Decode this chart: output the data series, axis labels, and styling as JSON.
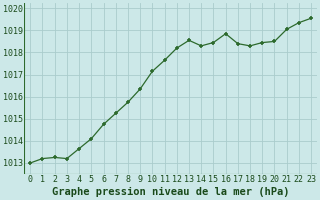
{
  "x": [
    0,
    1,
    2,
    3,
    4,
    5,
    6,
    7,
    8,
    9,
    10,
    11,
    12,
    13,
    14,
    15,
    16,
    17,
    18,
    19,
    20,
    21,
    22,
    23
  ],
  "y": [
    1013.0,
    1013.2,
    1013.25,
    1013.2,
    1013.65,
    1014.1,
    1014.75,
    1015.25,
    1015.75,
    1016.35,
    1017.15,
    1017.65,
    1018.2,
    1018.55,
    1018.3,
    1018.45,
    1018.85,
    1018.4,
    1018.3,
    1018.45,
    1018.5,
    1019.05,
    1019.35,
    1019.55
  ],
  "line_color": "#2d6a2d",
  "marker_color": "#2d6a2d",
  "bg_color": "#cce8e8",
  "grid_color": "#aacccc",
  "xlabel": "Graphe pression niveau de la mer (hPa)",
  "xlabel_color": "#1a4a1a",
  "ylim": [
    1012.5,
    1020.25
  ],
  "xlim": [
    -0.5,
    23.5
  ],
  "yticks": [
    1013,
    1014,
    1015,
    1016,
    1017,
    1018,
    1019,
    1020
  ],
  "xticks": [
    0,
    1,
    2,
    3,
    4,
    5,
    6,
    7,
    8,
    9,
    10,
    11,
    12,
    13,
    14,
    15,
    16,
    17,
    18,
    19,
    20,
    21,
    22,
    23
  ],
  "tick_label_color": "#1a4a1a",
  "tick_label_fontsize": 6.0,
  "xlabel_fontsize": 7.5,
  "line_width": 0.9,
  "marker_size": 3.5
}
